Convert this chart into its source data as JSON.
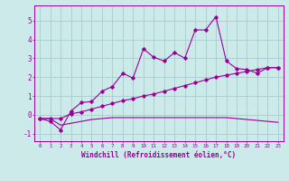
{
  "xlabel": "Windchill (Refroidissement éolien,°C)",
  "background_color": "#cceaea",
  "grid_color": "#aacccc",
  "line_color": "#990099",
  "x": [
    0,
    1,
    2,
    3,
    4,
    5,
    6,
    7,
    8,
    9,
    10,
    11,
    12,
    13,
    14,
    15,
    16,
    17,
    18,
    19,
    20,
    21,
    22,
    23
  ],
  "y_main": [
    -0.2,
    -0.35,
    -0.8,
    0.2,
    0.65,
    0.7,
    1.25,
    1.5,
    2.2,
    1.95,
    3.5,
    3.05,
    2.85,
    3.3,
    3.0,
    4.5,
    4.5,
    5.2,
    2.85,
    2.45,
    2.4,
    2.2,
    2.5,
    2.5
  ],
  "y_diag": [
    -0.2,
    -0.2,
    -0.2,
    0.05,
    0.15,
    0.3,
    0.45,
    0.6,
    0.75,
    0.85,
    1.0,
    1.1,
    1.25,
    1.4,
    1.55,
    1.7,
    1.85,
    2.0,
    2.1,
    2.2,
    2.3,
    2.4,
    2.5,
    2.5
  ],
  "y_flat": [
    -0.2,
    -0.2,
    -0.55,
    -0.45,
    -0.35,
    -0.25,
    -0.2,
    -0.15,
    -0.15,
    -0.15,
    -0.15,
    -0.15,
    -0.15,
    -0.15,
    -0.15,
    -0.15,
    -0.15,
    -0.15,
    -0.15,
    -0.2,
    -0.25,
    -0.3,
    -0.35,
    -0.4
  ],
  "ylim": [
    -1.4,
    5.8
  ],
  "xlim": [
    -0.5,
    23.5
  ],
  "yticks": [
    -1,
    0,
    1,
    2,
    3,
    4,
    5
  ],
  "xticks": [
    0,
    1,
    2,
    3,
    4,
    5,
    6,
    7,
    8,
    9,
    10,
    11,
    12,
    13,
    14,
    15,
    16,
    17,
    18,
    19,
    20,
    21,
    22,
    23
  ]
}
